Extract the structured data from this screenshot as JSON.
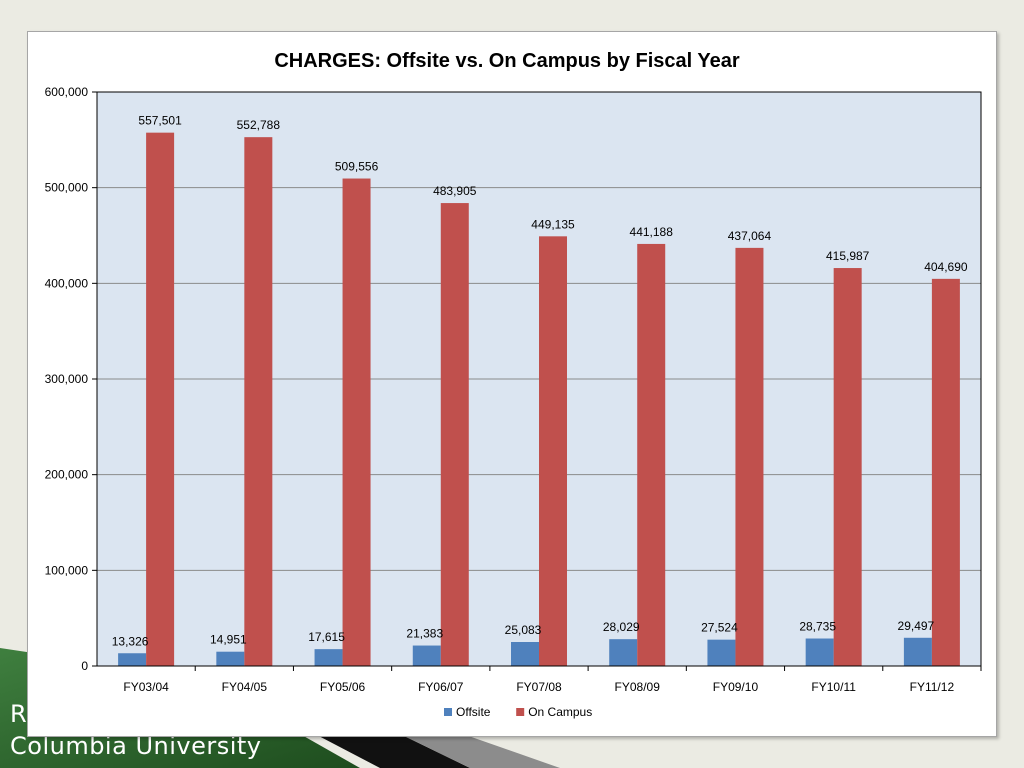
{
  "footer": {
    "line1": "R",
    "line2": "Columbia University"
  },
  "colors": {
    "offsite": "#4f81bd",
    "on_campus": "#c0504d",
    "plot_bg": "#dbe5f1",
    "footer_green": "#2e6b2e"
  },
  "chart_data": {
    "type": "bar",
    "title": "CHARGES: Offsite vs. On Campus by Fiscal Year",
    "xlabel": "",
    "ylabel": "",
    "categories": [
      "FY03/04",
      "FY04/05",
      "FY05/06",
      "FY06/07",
      "FY07/08",
      "FY08/09",
      "FY09/10",
      "FY10/11",
      "FY11/12"
    ],
    "series": [
      {
        "name": "Offsite",
        "values": [
          13326,
          14951,
          17615,
          21383,
          25083,
          28029,
          27524,
          28735,
          29497
        ],
        "labels": [
          "13,326",
          "14,951",
          "17,615",
          "21,383",
          "25,083",
          "28,029",
          "27,524",
          "28,735",
          "29,497"
        ]
      },
      {
        "name": "On Campus",
        "values": [
          557501,
          552788,
          509556,
          483905,
          449135,
          441188,
          437064,
          415987,
          404690
        ],
        "labels": [
          "557,501",
          "552,788",
          "509,556",
          "483,905",
          "449,135",
          "441,188",
          "437,064",
          "415,987",
          "404,690"
        ]
      }
    ],
    "ylim": [
      0,
      600000
    ],
    "yticks": [
      0,
      100000,
      200000,
      300000,
      400000,
      500000,
      600000
    ],
    "ytick_labels": [
      "0",
      "100,000",
      "200,000",
      "300,000",
      "400,000",
      "500,000",
      "600,000"
    ],
    "grid": true,
    "legend_position": "bottom"
  }
}
